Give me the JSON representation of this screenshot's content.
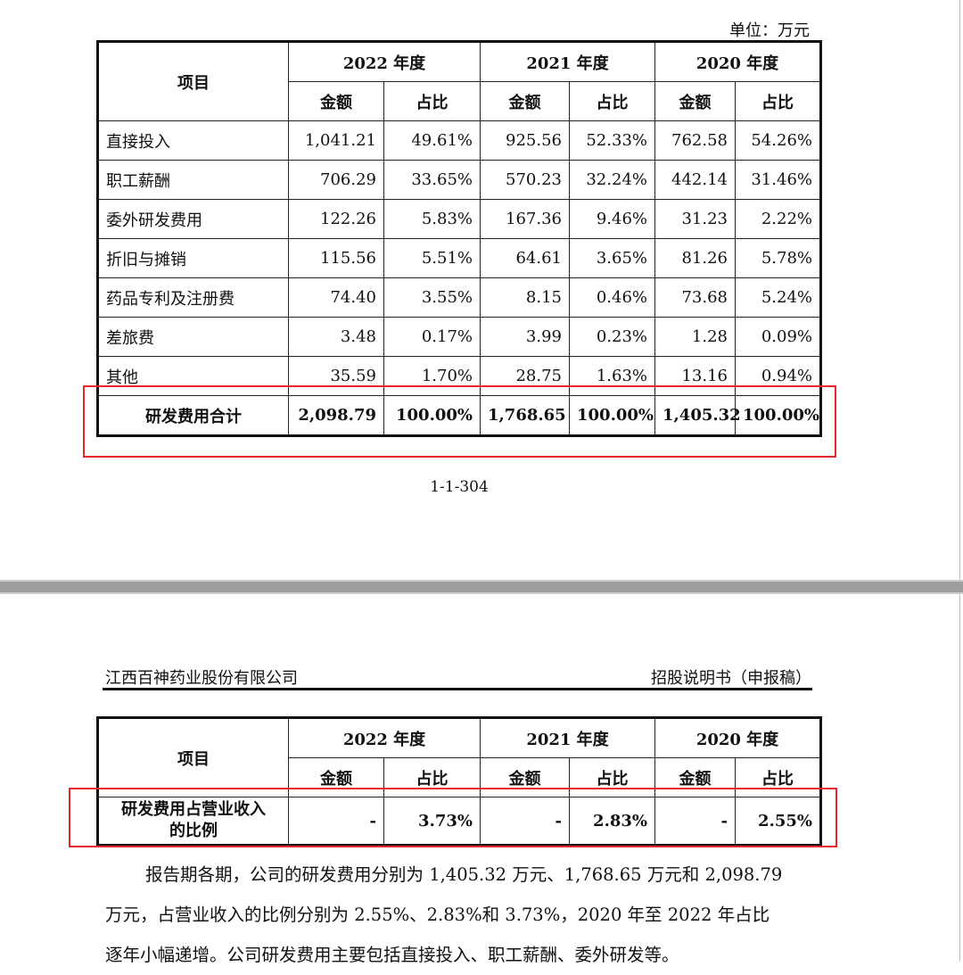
{
  "unit": "单位：万元",
  "table1": {
    "item_header": "项目",
    "years": [
      "2022 年度",
      "2021 年度",
      "2020 年度"
    ],
    "sub_headers": [
      "金额",
      "占比"
    ],
    "rows": [
      {
        "item": "直接投入",
        "values": [
          "1,041.21",
          "49.61%",
          "925.56",
          "52.33%",
          "762.58",
          "54.26%"
        ]
      },
      {
        "item": "职工薪酬",
        "values": [
          "706.29",
          "33.65%",
          "570.23",
          "32.24%",
          "442.14",
          "31.46%"
        ]
      },
      {
        "item": "委外研发费用",
        "values": [
          "122.26",
          "5.83%",
          "167.36",
          "9.46%",
          "31.23",
          "2.22%"
        ]
      },
      {
        "item": "折旧与摊销",
        "values": [
          "115.56",
          "5.51%",
          "64.61",
          "3.65%",
          "81.26",
          "5.78%"
        ]
      },
      {
        "item": "药品专利及注册费",
        "values": [
          "74.40",
          "3.55%",
          "8.15",
          "0.46%",
          "73.68",
          "5.24%"
        ]
      },
      {
        "item": "差旅费",
        "values": [
          "3.48",
          "0.17%",
          "3.99",
          "0.23%",
          "1.28",
          "0.09%"
        ]
      },
      {
        "item": "其他",
        "values": [
          "35.59",
          "1.70%",
          "28.75",
          "1.63%",
          "13.16",
          "0.94%"
        ]
      }
    ],
    "total": {
      "item": "研发费用合计",
      "values": [
        "2,098.79",
        "100.00%",
        "1,768.65",
        "100.00%",
        "1,405.32",
        "100.00%"
      ]
    }
  },
  "page_number": "1-1-304",
  "header": {
    "company": "江西百神药业股份有限公司",
    "doc": "招股说明书（申报稿）"
  },
  "table2": {
    "item_header": "项目",
    "years": [
      "2022 年度",
      "2021 年度",
      "2020 年度"
    ],
    "sub_headers": [
      "金额",
      "占比"
    ],
    "row": {
      "item_line1": "研发费用占营业收入",
      "item_line2": "的比例",
      "values": [
        "-",
        "3.73%",
        "-",
        "2.83%",
        "-",
        "2.55%"
      ]
    }
  },
  "paragraph": [
    "报告期各期，公司的研发费用分别为 1,405.32 万元、1,768.65 万元和 2,098.79",
    "万元，占营业收入的比例分别为 2.55%、2.83%和 3.73%，2020 年至 2022 年占比",
    "逐年小幅递增。公司研发费用主要包括直接投入、职工薪酬、委外研发等。"
  ],
  "highlight_color": "#e8262a"
}
